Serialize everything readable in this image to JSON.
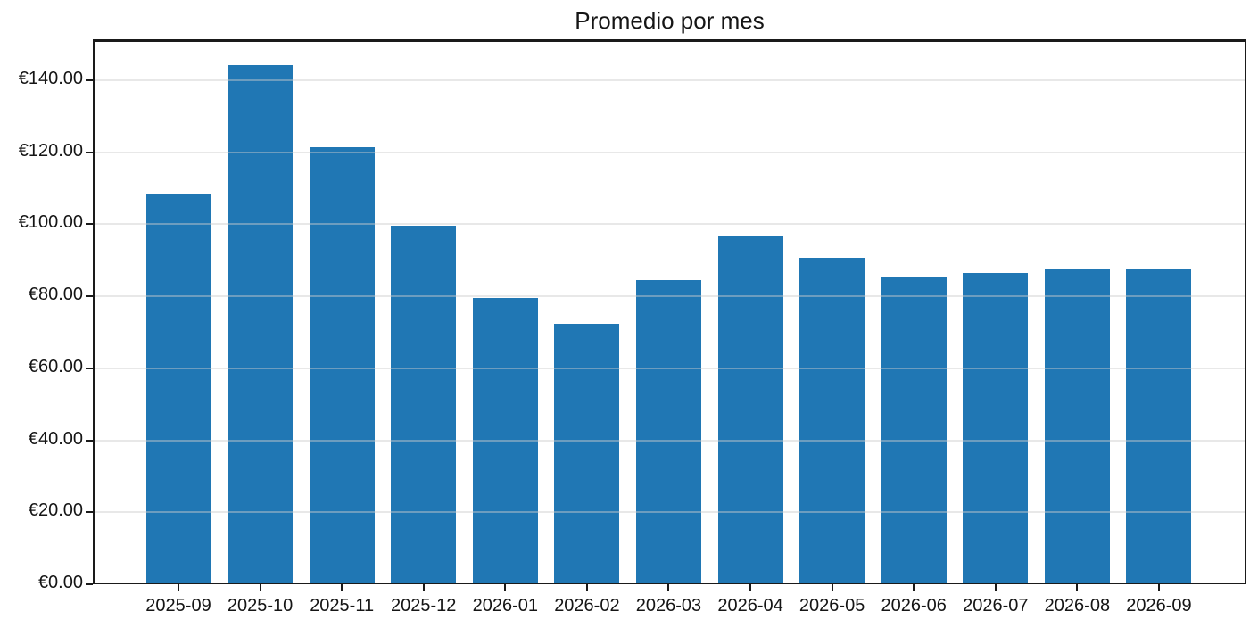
{
  "chart_data": {
    "type": "bar",
    "title": "Promedio por mes",
    "categories": [
      "2025-09",
      "2025-10",
      "2025-11",
      "2025-12",
      "2026-01",
      "2026-02",
      "2026-03",
      "2026-04",
      "2026-05",
      "2026-06",
      "2026-07",
      "2026-08",
      "2026-09"
    ],
    "values": [
      108.3,
      144.1,
      121.5,
      99.7,
      79.6,
      72.3,
      84.5,
      96.6,
      90.8,
      85.5,
      86.4,
      87.8,
      87.7
    ],
    "xlabel": "",
    "ylabel": "",
    "ylim": [
      0,
      151.4
    ],
    "y_ticks": [
      0,
      20,
      40,
      60,
      80,
      100,
      120,
      140
    ],
    "y_tick_labels": [
      "€0.00",
      "€20.00",
      "€40.00",
      "€60.00",
      "€80.00",
      "€100.00",
      "€120.00",
      "€140.00"
    ],
    "legend": "none",
    "grid": "horizontal",
    "bar_color": "#2077b4",
    "spine_color": "#1a1a1a",
    "grid_color": "#e8e8e8",
    "text_color": "#151515"
  }
}
